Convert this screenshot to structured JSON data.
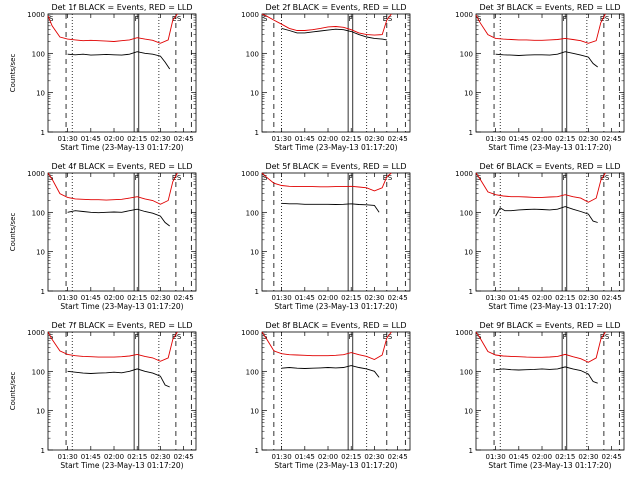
{
  "figure": {
    "xaxis_title": "Start Time (23-May-13 01:17:20)",
    "ylabel": "Counts/sec",
    "x_ticks": [
      "01:30",
      "01:45",
      "02:00",
      "02:15",
      "02:30",
      "02:45"
    ],
    "y_ticks": [
      "1",
      "10",
      "100",
      "1000"
    ],
    "colors": {
      "events": "#000000",
      "lld": "#e00000"
    }
  },
  "chart_data": [
    {
      "type": "line",
      "title": "Det 1f BLACK = Events, RED = LLD",
      "ylog": true,
      "ylim": [
        1,
        1000
      ],
      "xlim": [
        "01:17:20",
        "02:53:00"
      ],
      "series": [
        {
          "name": "Events",
          "color": "#000000",
          "x": [
            "01:30",
            "01:35",
            "01:40",
            "01:45",
            "01:50",
            "01:55",
            "02:00",
            "02:05",
            "02:10",
            "02:15",
            "02:20",
            "02:25",
            "02:30",
            "02:33",
            "02:36"
          ],
          "y": [
            95,
            92,
            95,
            90,
            92,
            94,
            92,
            90,
            95,
            110,
            100,
            95,
            85,
            60,
            40
          ]
        },
        {
          "name": "LLD",
          "color": "#e00000",
          "x": [
            "01:17:20",
            "01:20",
            "01:25",
            "01:30",
            "01:35",
            "01:40",
            "01:45",
            "01:50",
            "01:55",
            "02:00",
            "02:05",
            "02:10",
            "02:15",
            "02:20",
            "02:25",
            "02:30",
            "02:35",
            "02:38",
            "02:41"
          ],
          "y": [
            900,
            500,
            260,
            230,
            220,
            210,
            215,
            210,
            205,
            200,
            210,
            220,
            250,
            230,
            215,
            180,
            220,
            700,
            1000
          ]
        }
      ],
      "markers": {
        "dashed": [
          "01:29",
          "02:40",
          "02:50"
        ],
        "dotted": [
          "01:33",
          "02:29"
        ],
        "solid": [
          "02:13",
          "02:16"
        ],
        "labels": [
          "S",
          "F",
          "E",
          "S"
        ]
      }
    },
    {
      "type": "line",
      "title": "Det 2f BLACK = Events, RED = LLD",
      "ylog": true,
      "ylim": [
        1,
        1000
      ],
      "xlim": [
        "01:17:20",
        "02:53:00"
      ],
      "series": [
        {
          "name": "Events",
          "color": "#000000",
          "x": [
            "01:30",
            "01:35",
            "01:40",
            "01:45",
            "01:50",
            "01:55",
            "02:00",
            "02:05",
            "02:10",
            "02:15",
            "02:20",
            "02:25",
            "02:30",
            "02:35",
            "02:38"
          ],
          "y": [
            430,
            380,
            330,
            330,
            350,
            370,
            390,
            410,
            400,
            360,
            300,
            260,
            240,
            230,
            220
          ]
        },
        {
          "name": "LLD",
          "color": "#e00000",
          "x": [
            "01:17:20",
            "01:20",
            "01:25",
            "01:30",
            "01:35",
            "01:40",
            "01:45",
            "01:50",
            "01:55",
            "02:00",
            "02:05",
            "02:10",
            "02:15",
            "02:20",
            "02:25",
            "02:30",
            "02:35",
            "02:38",
            "02:41"
          ],
          "y": [
            1000,
            900,
            700,
            550,
            430,
            380,
            380,
            400,
            430,
            470,
            480,
            460,
            400,
            330,
            300,
            290,
            300,
            700,
            1000
          ]
        }
      ],
      "markers": {
        "dashed": [
          "01:25",
          "02:38",
          "02:50"
        ],
        "dotted": [
          "01:30",
          "02:25"
        ],
        "solid": [
          "02:13",
          "02:16"
        ],
        "labels": [
          "S",
          "F",
          "E",
          "S"
        ]
      }
    },
    {
      "type": "line",
      "title": "Det 3f BLACK = Events, RED = LLD",
      "ylog": true,
      "ylim": [
        1,
        1000
      ],
      "xlim": [
        "01:17:20",
        "02:53:00"
      ],
      "series": [
        {
          "name": "Events",
          "color": "#000000",
          "x": [
            "01:30",
            "01:35",
            "01:40",
            "01:45",
            "01:50",
            "01:55",
            "02:00",
            "02:05",
            "02:10",
            "02:15",
            "02:20",
            "02:25",
            "02:30",
            "02:33",
            "02:36"
          ],
          "y": [
            95,
            92,
            90,
            88,
            90,
            92,
            92,
            90,
            95,
            110,
            100,
            90,
            80,
            55,
            45
          ]
        },
        {
          "name": "LLD",
          "color": "#e00000",
          "x": [
            "01:17:20",
            "01:20",
            "01:25",
            "01:30",
            "01:35",
            "01:40",
            "01:45",
            "01:50",
            "01:55",
            "02:00",
            "02:05",
            "02:10",
            "02:15",
            "02:20",
            "02:25",
            "02:30",
            "02:35",
            "02:38",
            "02:41"
          ],
          "y": [
            950,
            600,
            300,
            240,
            230,
            225,
            220,
            220,
            215,
            215,
            220,
            225,
            240,
            225,
            210,
            180,
            210,
            600,
            1000
          ]
        }
      ],
      "markers": {
        "dashed": [
          "01:29",
          "02:40",
          "02:50"
        ],
        "dotted": [
          "01:33",
          "02:29"
        ],
        "solid": [
          "02:13",
          "02:16"
        ],
        "labels": [
          "S",
          "F",
          "E",
          "S"
        ]
      }
    },
    {
      "type": "line",
      "title": "Det 4f BLACK = Events, RED = LLD",
      "ylog": true,
      "ylim": [
        1,
        1000
      ],
      "xlim": [
        "01:17:20",
        "02:53:00"
      ],
      "series": [
        {
          "name": "Events",
          "color": "#000000",
          "x": [
            "01:30",
            "01:35",
            "01:40",
            "01:45",
            "01:50",
            "01:55",
            "02:00",
            "02:05",
            "02:10",
            "02:15",
            "02:20",
            "02:25",
            "02:30",
            "02:33",
            "02:36"
          ],
          "y": [
            100,
            110,
            105,
            100,
            98,
            100,
            102,
            100,
            110,
            120,
            105,
            95,
            80,
            55,
            45
          ]
        },
        {
          "name": "LLD",
          "color": "#e00000",
          "x": [
            "01:17:20",
            "01:20",
            "01:25",
            "01:30",
            "01:35",
            "01:40",
            "01:45",
            "01:50",
            "01:55",
            "02:00",
            "02:05",
            "02:10",
            "02:15",
            "02:20",
            "02:25",
            "02:30",
            "02:35",
            "02:38",
            "02:41"
          ],
          "y": [
            1000,
            700,
            300,
            240,
            220,
            215,
            210,
            210,
            205,
            210,
            215,
            230,
            250,
            220,
            200,
            160,
            200,
            600,
            1000
          ]
        }
      ],
      "markers": {
        "dashed": [
          "01:29",
          "02:40",
          "02:50"
        ],
        "dotted": [
          "01:33",
          "02:29"
        ],
        "solid": [
          "02:13",
          "02:16"
        ],
        "labels": [
          "S",
          "F",
          "E",
          "S"
        ]
      }
    },
    {
      "type": "line",
      "title": "Det 5f BLACK = Events, RED = LLD",
      "ylog": true,
      "ylim": [
        1,
        1000
      ],
      "xlim": [
        "01:17:20",
        "02:53:00"
      ],
      "series": [
        {
          "name": "Events",
          "color": "#000000",
          "x": [
            "01:30",
            "01:35",
            "01:40",
            "01:45",
            "01:50",
            "01:55",
            "02:00",
            "02:05",
            "02:10",
            "02:15",
            "02:20",
            "02:25",
            "02:30",
            "02:33"
          ],
          "y": [
            170,
            165,
            165,
            160,
            160,
            160,
            160,
            158,
            160,
            165,
            158,
            155,
            150,
            100
          ]
        },
        {
          "name": "LLD",
          "color": "#e00000",
          "x": [
            "01:17:20",
            "01:20",
            "01:25",
            "01:30",
            "01:35",
            "01:40",
            "01:45",
            "01:50",
            "01:55",
            "02:00",
            "02:05",
            "02:10",
            "02:15",
            "02:20",
            "02:25",
            "02:30",
            "02:35",
            "02:38",
            "02:41"
          ],
          "y": [
            1000,
            800,
            550,
            480,
            460,
            450,
            450,
            450,
            445,
            445,
            450,
            450,
            460,
            440,
            420,
            350,
            420,
            800,
            1000
          ]
        }
      ],
      "markers": {
        "dashed": [
          "01:25",
          "02:38",
          "02:50"
        ],
        "dotted": [
          "01:30",
          "02:25"
        ],
        "solid": [
          "02:13",
          "02:16"
        ],
        "labels": [
          "S",
          "F",
          "E",
          "S"
        ]
      }
    },
    {
      "type": "line",
      "title": "Det 6f BLACK = Events, RED = LLD",
      "ylog": true,
      "ylim": [
        1,
        1000
      ],
      "xlim": [
        "01:17:20",
        "02:53:00"
      ],
      "series": [
        {
          "name": "Events",
          "color": "#000000",
          "x": [
            "01:30",
            "01:33",
            "01:36",
            "01:40",
            "01:45",
            "01:50",
            "01:55",
            "02:00",
            "02:05",
            "02:10",
            "02:15",
            "02:20",
            "02:25",
            "02:30",
            "02:33",
            "02:36"
          ],
          "y": [
            80,
            130,
            110,
            110,
            115,
            118,
            120,
            118,
            115,
            120,
            140,
            120,
            105,
            90,
            60,
            55
          ]
        },
        {
          "name": "LLD",
          "color": "#e00000",
          "x": [
            "01:17:20",
            "01:20",
            "01:25",
            "01:30",
            "01:35",
            "01:40",
            "01:45",
            "01:50",
            "01:55",
            "02:00",
            "02:05",
            "02:10",
            "02:15",
            "02:20",
            "02:25",
            "02:30",
            "02:35",
            "02:38",
            "02:41"
          ],
          "y": [
            1000,
            700,
            330,
            280,
            260,
            250,
            250,
            245,
            240,
            240,
            245,
            250,
            280,
            250,
            230,
            180,
            230,
            650,
            1000
          ]
        }
      ],
      "markers": {
        "dashed": [
          "01:29",
          "02:40",
          "02:50"
        ],
        "dotted": [
          "01:33",
          "02:29"
        ],
        "solid": [
          "02:13",
          "02:16"
        ],
        "labels": [
          "S",
          "F",
          "E",
          "S"
        ]
      }
    },
    {
      "type": "line",
      "title": "Det 7f BLACK = Events, RED = LLD",
      "ylog": true,
      "ylim": [
        1,
        1000
      ],
      "xlim": [
        "01:17:20",
        "02:53:00"
      ],
      "series": [
        {
          "name": "Events",
          "color": "#000000",
          "x": [
            "01:30",
            "01:35",
            "01:40",
            "01:45",
            "01:50",
            "01:55",
            "02:00",
            "02:05",
            "02:10",
            "02:15",
            "02:20",
            "02:25",
            "02:30",
            "02:33",
            "02:36"
          ],
          "y": [
            100,
            95,
            90,
            88,
            90,
            92,
            95,
            92,
            100,
            115,
            100,
            90,
            75,
            45,
            40
          ]
        },
        {
          "name": "LLD",
          "color": "#e00000",
          "x": [
            "01:17:20",
            "01:20",
            "01:25",
            "01:30",
            "01:35",
            "01:40",
            "01:45",
            "01:50",
            "01:55",
            "02:00",
            "02:05",
            "02:10",
            "02:15",
            "02:20",
            "02:25",
            "02:30",
            "02:35",
            "02:38",
            "02:41"
          ],
          "y": [
            1000,
            650,
            330,
            270,
            250,
            240,
            235,
            230,
            230,
            230,
            235,
            245,
            270,
            240,
            220,
            180,
            220,
            650,
            1000
          ]
        }
      ],
      "markers": {
        "dashed": [
          "01:29",
          "02:40",
          "02:50"
        ],
        "dotted": [
          "01:33",
          "02:29"
        ],
        "solid": [
          "02:13",
          "02:16"
        ],
        "labels": [
          "S",
          "F",
          "E",
          "S"
        ]
      }
    },
    {
      "type": "line",
      "title": "Det 8f BLACK = Events, RED = LLD",
      "ylog": true,
      "ylim": [
        1,
        1000
      ],
      "xlim": [
        "01:17:20",
        "02:53:00"
      ],
      "series": [
        {
          "name": "Events",
          "color": "#000000",
          "x": [
            "01:30",
            "01:35",
            "01:40",
            "01:45",
            "01:50",
            "01:55",
            "02:00",
            "02:05",
            "02:10",
            "02:15",
            "02:20",
            "02:25",
            "02:30",
            "02:33"
          ],
          "y": [
            120,
            125,
            120,
            118,
            120,
            122,
            125,
            122,
            125,
            140,
            125,
            115,
            100,
            70
          ]
        },
        {
          "name": "LLD",
          "color": "#e00000",
          "x": [
            "01:17:20",
            "01:20",
            "01:25",
            "01:30",
            "01:35",
            "01:40",
            "01:45",
            "01:50",
            "01:55",
            "02:00",
            "02:05",
            "02:10",
            "02:15",
            "02:20",
            "02:25",
            "02:30",
            "02:35",
            "02:38",
            "02:41"
          ],
          "y": [
            1000,
            700,
            330,
            280,
            265,
            260,
            255,
            250,
            250,
            250,
            255,
            265,
            300,
            265,
            240,
            200,
            260,
            700,
            1000
          ]
        }
      ],
      "markers": {
        "dashed": [
          "01:25",
          "02:38",
          "02:50"
        ],
        "dotted": [
          "01:30",
          "02:25"
        ],
        "solid": [
          "02:13",
          "02:16"
        ],
        "labels": [
          "S",
          "F",
          "E",
          "S"
        ]
      }
    },
    {
      "type": "line",
      "title": "Det 9f BLACK = Events, RED = LLD",
      "ylog": true,
      "ylim": [
        1,
        1000
      ],
      "xlim": [
        "01:17:20",
        "02:53:00"
      ],
      "series": [
        {
          "name": "Events",
          "color": "#000000",
          "x": [
            "01:30",
            "01:35",
            "01:40",
            "01:45",
            "01:50",
            "01:55",
            "02:00",
            "02:05",
            "02:10",
            "02:15",
            "02:20",
            "02:25",
            "02:30",
            "02:33",
            "02:36"
          ],
          "y": [
            110,
            115,
            110,
            108,
            110,
            112,
            115,
            112,
            115,
            130,
            115,
            105,
            85,
            55,
            50
          ]
        },
        {
          "name": "LLD",
          "color": "#e00000",
          "x": [
            "01:17:20",
            "01:20",
            "01:25",
            "01:30",
            "01:35",
            "01:40",
            "01:45",
            "01:50",
            "01:55",
            "02:00",
            "02:05",
            "02:10",
            "02:15",
            "02:20",
            "02:25",
            "02:30",
            "02:35",
            "02:38",
            "02:41"
          ],
          "y": [
            1000,
            700,
            320,
            260,
            245,
            240,
            235,
            230,
            228,
            228,
            232,
            240,
            270,
            235,
            210,
            170,
            220,
            650,
            1000
          ]
        }
      ],
      "markers": {
        "dashed": [
          "01:29",
          "02:40",
          "02:50"
        ],
        "dotted": [
          "01:33",
          "02:29"
        ],
        "solid": [
          "02:13",
          "02:16"
        ],
        "labels": [
          "S",
          "F",
          "E",
          "S"
        ]
      }
    }
  ]
}
